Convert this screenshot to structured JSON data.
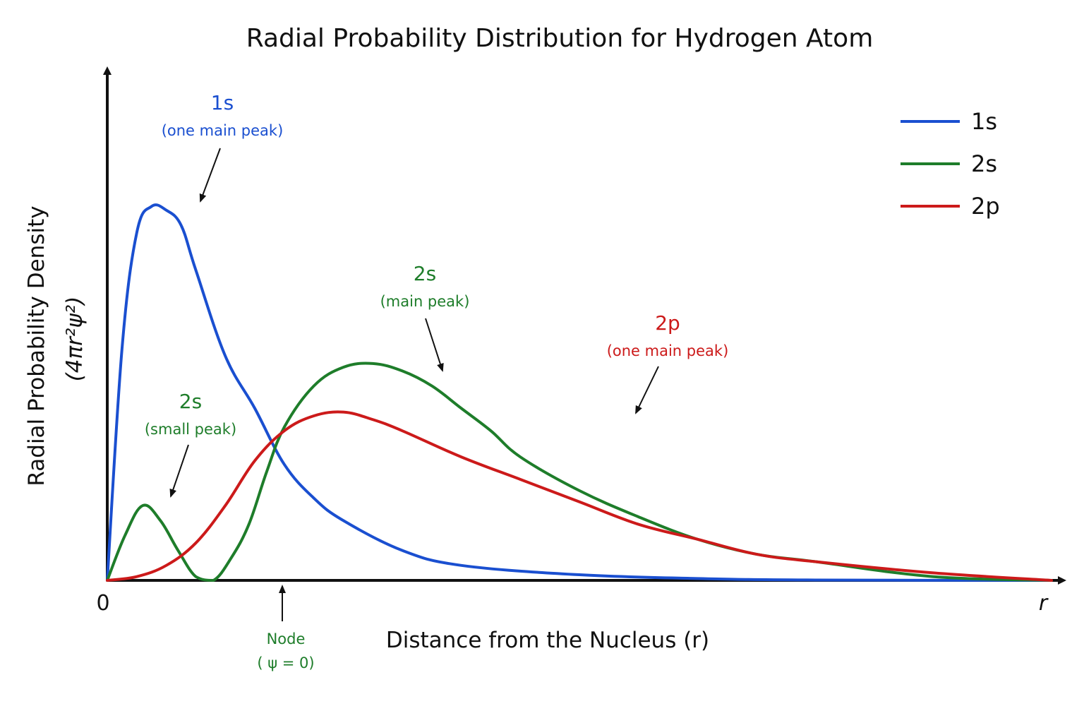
{
  "chart_data": {
    "type": "line",
    "title": "Radial Probability Distribution for Hydrogen Atom",
    "xlabel": "Distance from the Nucleus (r)",
    "ylabel": "Radial Probability Density",
    "ylabel_formula": "(4πr²ψ²)",
    "x_tick_origin": "0",
    "x_axis_end_label": "r",
    "grid": false,
    "legend_position": "top-right",
    "series": [
      {
        "name": "1s",
        "color": "#1a4fd0",
        "x": [
          0,
          0.25,
          0.5,
          0.75,
          1,
          1.25,
          1.5,
          2,
          2.5,
          3,
          3.5,
          4,
          5,
          6,
          8,
          10,
          12,
          16
        ],
        "values": [
          0,
          0.62,
          0.93,
          1.0,
          0.99,
          0.95,
          0.83,
          0.6,
          0.46,
          0.31,
          0.22,
          0.16,
          0.08,
          0.04,
          0.015,
          0.005,
          0.001,
          0
        ]
      },
      {
        "name": "2s",
        "color": "#1e7d2a",
        "x": [
          0,
          0.3,
          0.6,
          0.9,
          1.2,
          1.5,
          1.8,
          2.1,
          2.4,
          2.7,
          3,
          3.5,
          4,
          4.5,
          5,
          5.5,
          6,
          6.5,
          7,
          8,
          9,
          10,
          11,
          12,
          14,
          16
        ],
        "values": [
          0,
          0.12,
          0.2,
          0.16,
          0.08,
          0.01,
          0.0,
          0.06,
          0.15,
          0.29,
          0.41,
          0.52,
          0.57,
          0.58,
          0.56,
          0.52,
          0.46,
          0.4,
          0.33,
          0.24,
          0.17,
          0.11,
          0.07,
          0.05,
          0.01,
          0
        ]
      },
      {
        "name": "2p",
        "color": "#cc1a1a",
        "x": [
          0,
          0.5,
          1,
          1.5,
          2,
          2.5,
          3,
          3.5,
          4,
          4.5,
          5,
          6,
          7,
          8,
          9,
          10,
          11,
          12,
          14,
          16
        ],
        "values": [
          0,
          0.01,
          0.04,
          0.1,
          0.2,
          0.32,
          0.4,
          0.44,
          0.45,
          0.43,
          0.4,
          0.33,
          0.27,
          0.21,
          0.15,
          0.11,
          0.07,
          0.05,
          0.02,
          0
        ]
      }
    ],
    "annotations": [
      {
        "label": "1s",
        "sublabel": "(one main peak)",
        "series": "1s",
        "color": "#1a4fd0",
        "target": [
          1.4,
          1.0
        ]
      },
      {
        "label": "2s",
        "sublabel": "(small peak)",
        "series": "2s",
        "color": "#1e7d2a",
        "target": [
          1.0,
          0.22
        ]
      },
      {
        "label": "2s",
        "sublabel": "(main peak)",
        "series": "2s",
        "color": "#1e7d2a",
        "target": [
          5.2,
          0.56
        ]
      },
      {
        "label": "2p",
        "sublabel": "(one main peak)",
        "series": "2p",
        "color": "#cc1a1a",
        "target": [
          8.8,
          0.45
        ]
      },
      {
        "label": "Node",
        "sublabel": "( ψ = 0)",
        "series": "2s",
        "color": "#1e7d2a",
        "target": [
          2.7,
          0
        ]
      }
    ],
    "xlim": [
      0,
      16
    ],
    "ylim": [
      0,
      1.25
    ]
  }
}
